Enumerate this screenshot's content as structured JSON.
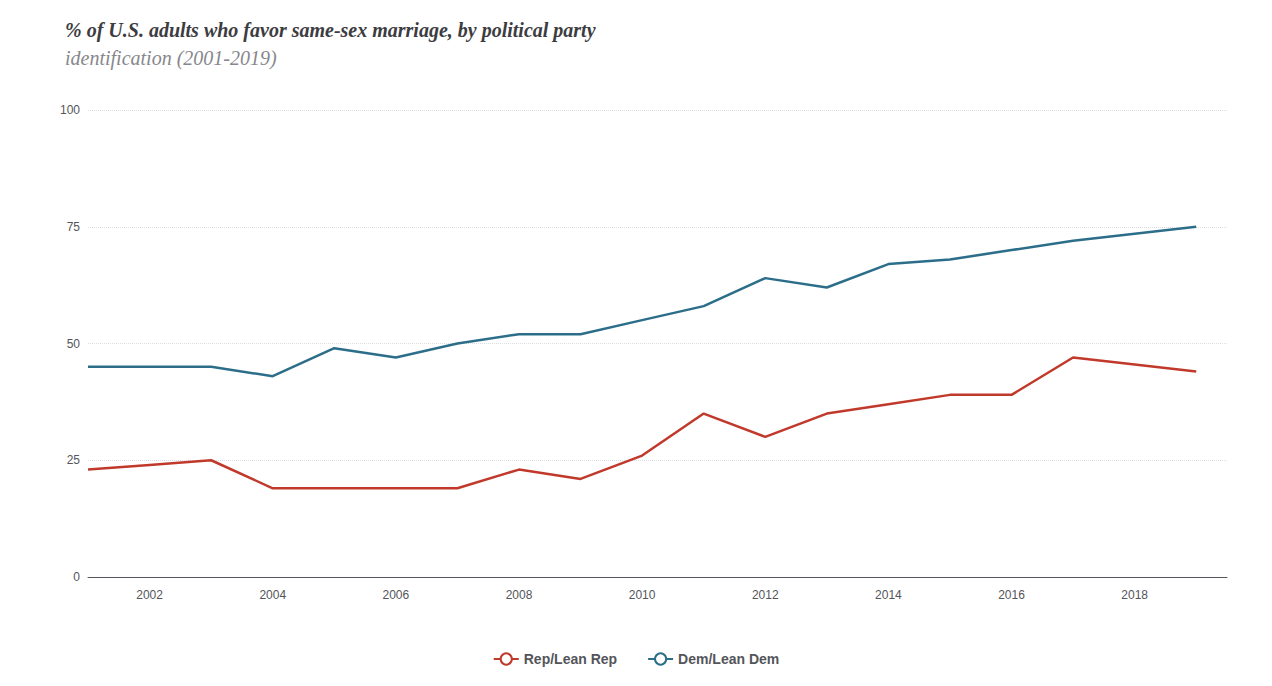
{
  "chart_data": {
    "type": "line",
    "title": "% of U.S. adults who favor same-sex marriage, by political party",
    "subtitle": "identification (2001-2019)",
    "x": [
      2001,
      2002,
      2003,
      2004,
      2005,
      2006,
      2007,
      2008,
      2009,
      2010,
      2011,
      2012,
      2013,
      2014,
      2015,
      2016,
      2017,
      2019
    ],
    "series": [
      {
        "name": "Rep/Lean Rep",
        "color": "#c0392b",
        "values": [
          23,
          24,
          25,
          19,
          19,
          19,
          19,
          23,
          21,
          26,
          35,
          30,
          35,
          37,
          39,
          39,
          47,
          44
        ]
      },
      {
        "name": "Dem/Lean Dem",
        "color": "#2c6e8a",
        "values": [
          45,
          45,
          45,
          43,
          49,
          47,
          50,
          52,
          52,
          55,
          58,
          64,
          62,
          67,
          68,
          70,
          72,
          75
        ]
      }
    ],
    "xlim": [
      2001,
      2019.5
    ],
    "xticks": [
      2002,
      2004,
      2006,
      2008,
      2010,
      2012,
      2014,
      2016,
      2018
    ],
    "ylim": [
      0,
      100
    ],
    "yticks": [
      0,
      25,
      50,
      75,
      100
    ],
    "grid": true,
    "legend": "bottom"
  }
}
